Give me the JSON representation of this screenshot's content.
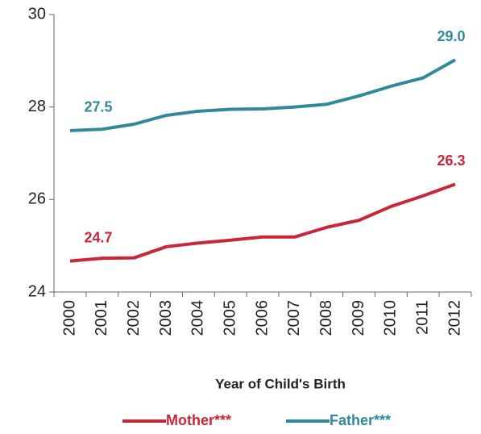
{
  "chart_data": {
    "type": "line",
    "x_label": "Year of Child's Birth",
    "categories": [
      "2000",
      "2001",
      "2002",
      "2003",
      "2004",
      "2005",
      "2006",
      "2007",
      "2008",
      "2009",
      "2010",
      "2011",
      "2012"
    ],
    "series": [
      {
        "name": "Mother***",
        "color": "#c8273a",
        "values": [
          24.67,
          24.73,
          24.74,
          24.98,
          25.06,
          25.12,
          25.19,
          25.19,
          25.4,
          25.55,
          25.85,
          26.08,
          26.33
        ],
        "value_labels": [
          "24.7",
          null,
          null,
          null,
          null,
          null,
          null,
          null,
          null,
          null,
          null,
          null,
          "26.3"
        ]
      },
      {
        "name": "Father***",
        "color": "#2e8a9a",
        "values": [
          27.49,
          27.52,
          27.63,
          27.82,
          27.91,
          27.95,
          27.96,
          28.0,
          28.06,
          28.24,
          28.45,
          28.63,
          29.02
        ],
        "value_labels": [
          "27.5",
          null,
          null,
          null,
          null,
          null,
          null,
          null,
          null,
          null,
          null,
          null,
          "29.0"
        ]
      }
    ],
    "ylim": [
      24,
      30
    ],
    "yticks": [
      24,
      26,
      28,
      30
    ]
  }
}
